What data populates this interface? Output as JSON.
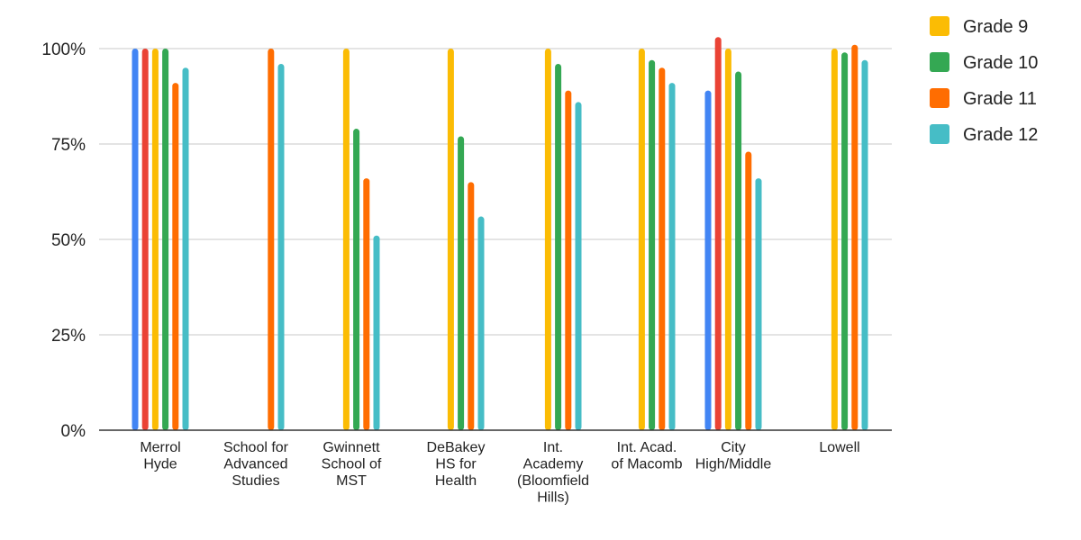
{
  "chart_data": {
    "type": "bar",
    "title": "",
    "xlabel": "",
    "ylabel": "",
    "ylim": [
      0,
      1.05
    ],
    "yticks": [
      {
        "value": 0,
        "label": "0%"
      },
      {
        "value": 0.25,
        "label": "25%"
      },
      {
        "value": 0.5,
        "label": "50%"
      },
      {
        "value": 0.75,
        "label": "75%"
      },
      {
        "value": 1.0,
        "label": "100%"
      }
    ],
    "grid": true,
    "legend_position": "top-right",
    "categories": [
      [
        "Merrol",
        "Hyde"
      ],
      [
        "School for",
        "Advanced",
        "Studies"
      ],
      [
        "Gwinnett",
        "School of",
        "MST"
      ],
      [
        "DeBakey",
        "HS for",
        "Health"
      ],
      [
        "Int.",
        "Academy",
        "(Bloomfield",
        "Hills)"
      ],
      [
        "Int. Acad.",
        "of Macomb"
      ],
      [
        "City",
        "High/Middle"
      ],
      [
        "Lowell"
      ]
    ],
    "series": [
      {
        "name": "",
        "color": "#4285f4",
        "values": [
          1.0,
          null,
          null,
          null,
          null,
          null,
          0.89,
          null
        ]
      },
      {
        "name": "",
        "color": "#ea4335",
        "values": [
          1.0,
          null,
          null,
          null,
          null,
          null,
          1.03,
          null
        ]
      },
      {
        "name": "Grade 9",
        "color": "#fbbc04",
        "values": [
          1.0,
          null,
          1.0,
          1.0,
          1.0,
          1.0,
          1.0,
          1.0
        ]
      },
      {
        "name": "Grade 10",
        "color": "#34a853",
        "values": [
          1.0,
          null,
          0.79,
          0.77,
          0.96,
          0.97,
          0.94,
          0.99
        ]
      },
      {
        "name": "Grade 11",
        "color": "#ff6d01",
        "values": [
          0.91,
          1.0,
          0.66,
          0.65,
          0.89,
          0.95,
          0.73,
          1.01
        ]
      },
      {
        "name": "Grade 12",
        "color": "#46bdc6",
        "values": [
          0.95,
          0.96,
          0.51,
          0.56,
          0.86,
          0.91,
          0.66,
          0.97
        ]
      }
    ]
  }
}
